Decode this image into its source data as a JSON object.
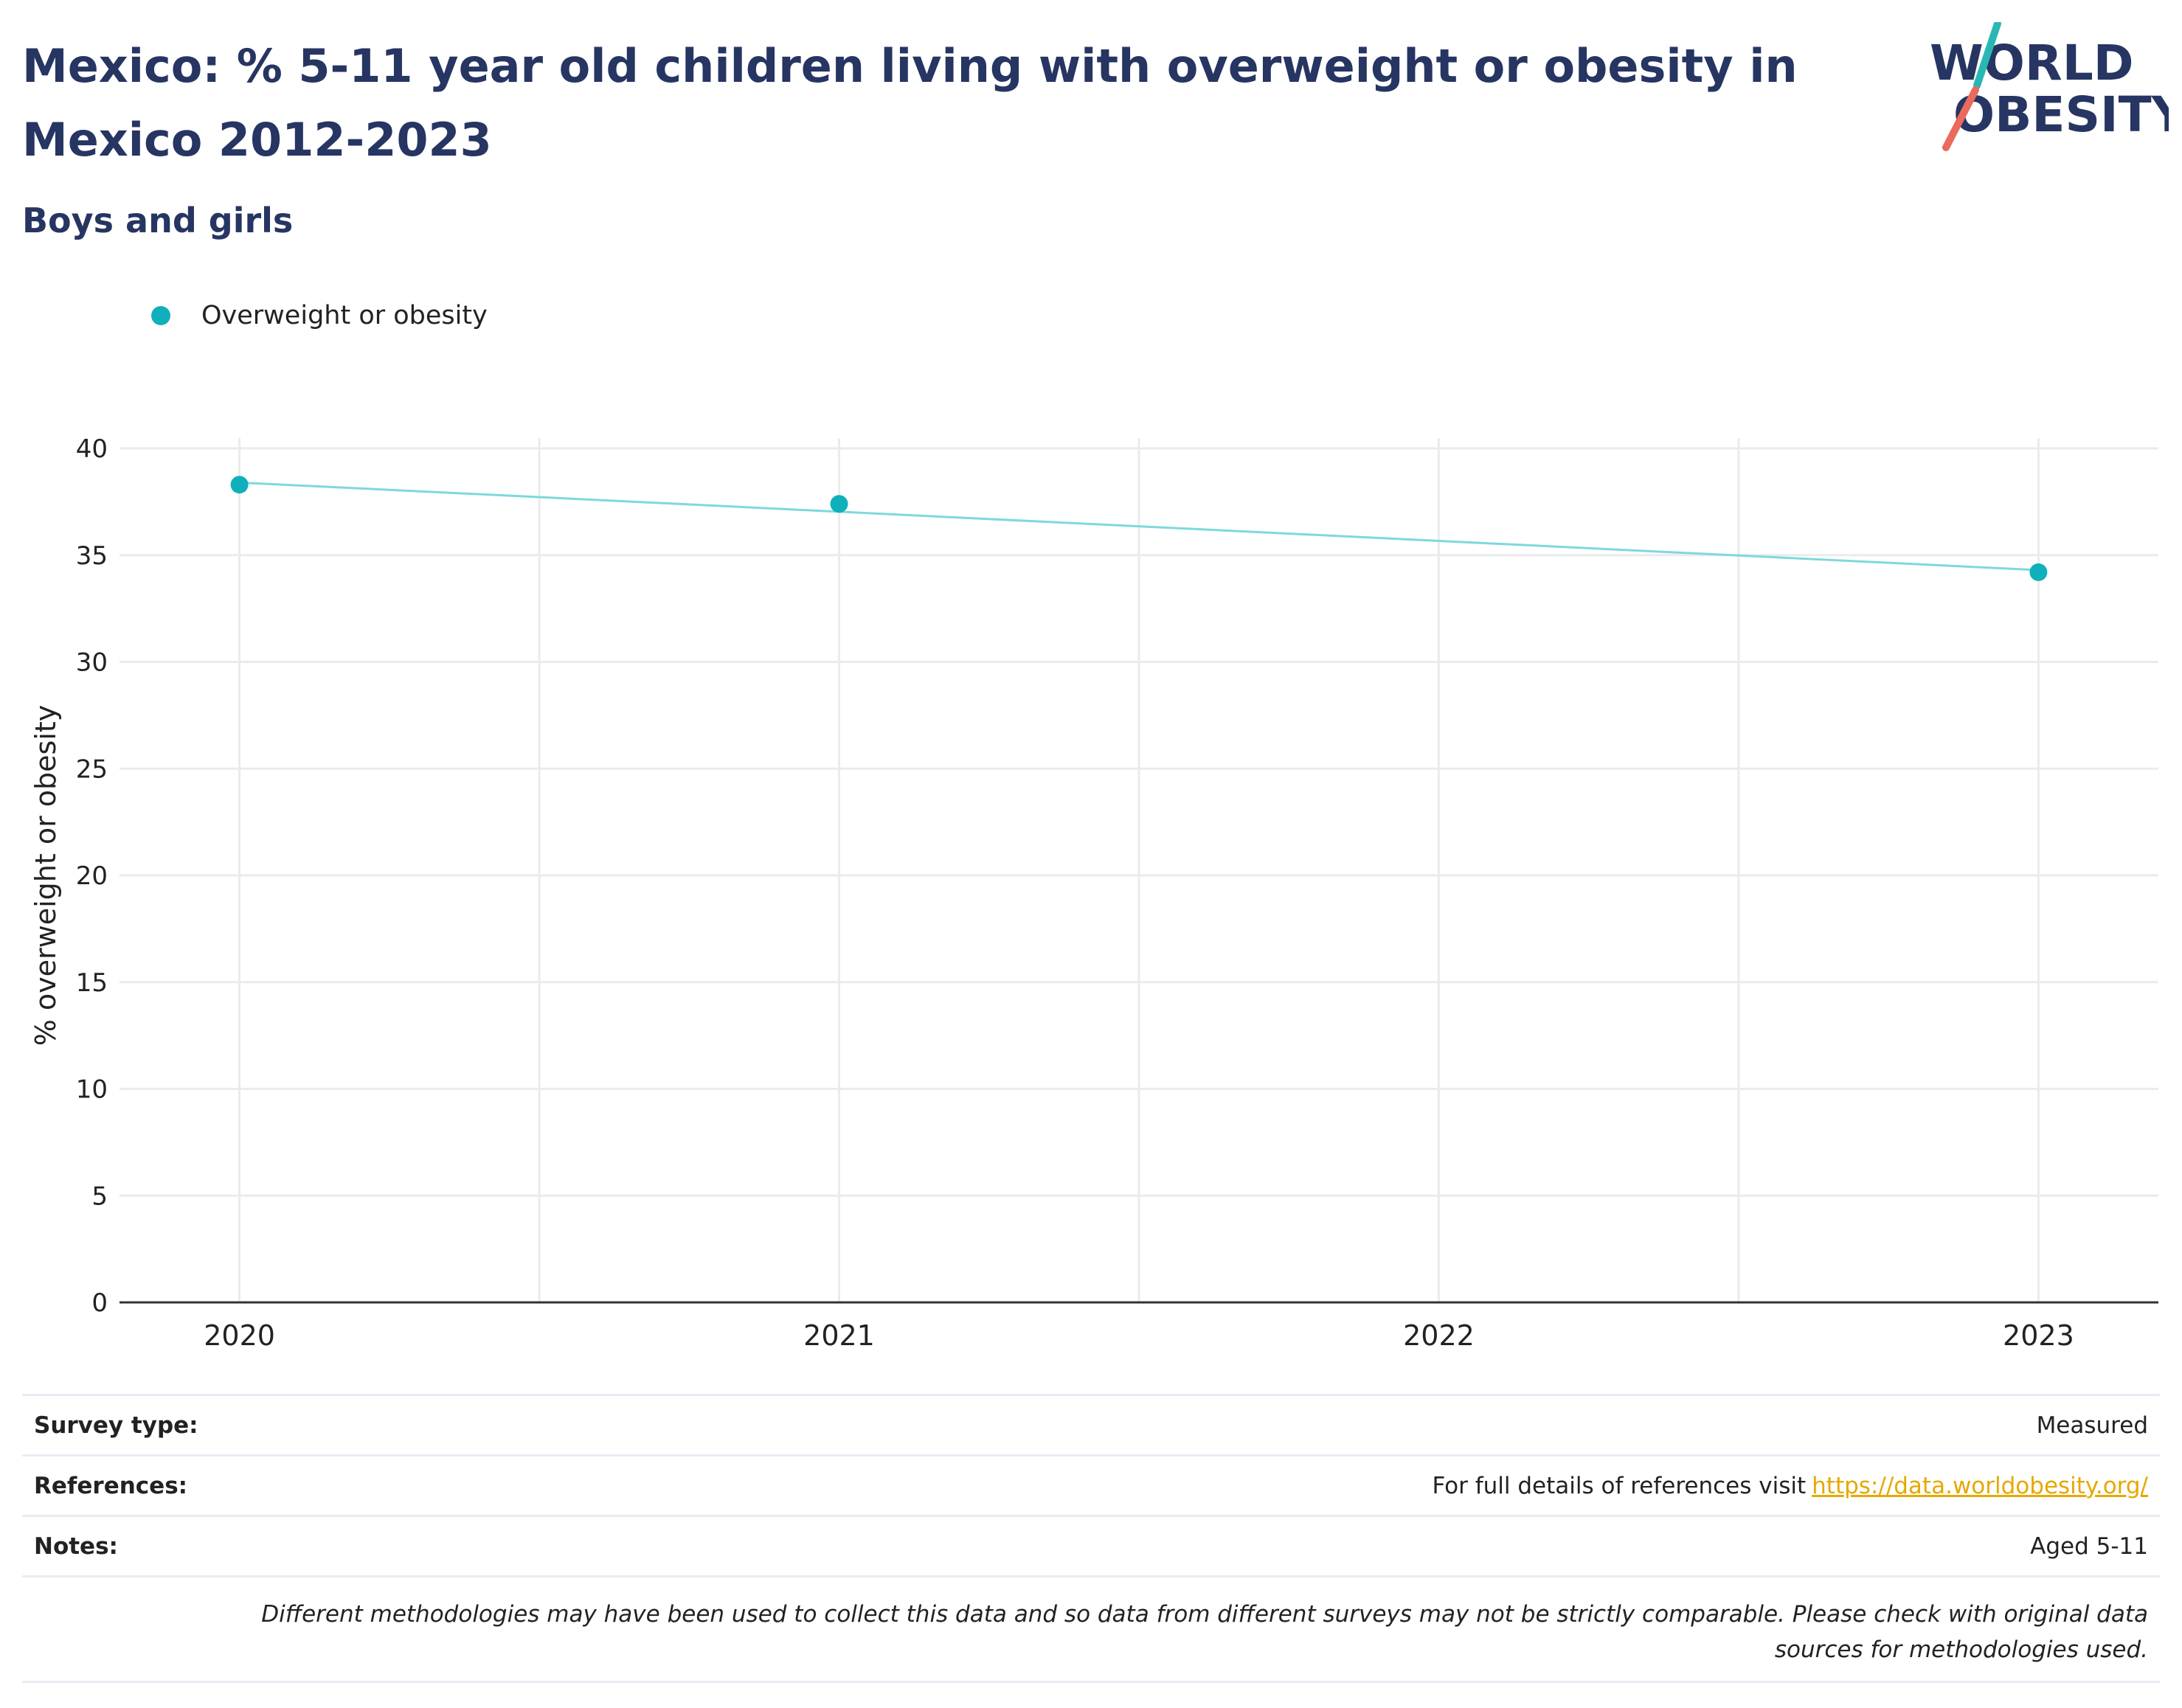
{
  "header": {
    "title": "Mexico: % 5-11 year old children living with overweight or obesity in Mexico 2012-2023",
    "subtitle": "Boys and girls",
    "logo_line1": "WORLD",
    "logo_line2": "OBESITY"
  },
  "legend": {
    "items": [
      {
        "label": "Overweight or obesity"
      }
    ]
  },
  "colors": {
    "accent": "#0fb0bb",
    "line": "#7fd8dc",
    "title": "#263562",
    "logo_teal": "#2ab7b4",
    "logo_coral": "#ea6a5b",
    "link": "#e6a800"
  },
  "chart_data": {
    "type": "line",
    "x": [
      2020,
      2021,
      2023
    ],
    "series": [
      {
        "name": "Overweight or obesity",
        "values": [
          38.3,
          37.4,
          34.2
        ]
      }
    ],
    "trend_line": {
      "x": [
        2020,
        2023
      ],
      "values": [
        38.4,
        34.3
      ]
    },
    "xlim": [
      2019.8,
      2023.2
    ],
    "xticks": [
      "2020",
      "2021",
      "2022",
      "2023"
    ],
    "ylim": [
      0,
      40
    ],
    "yticks": [
      "0",
      "5",
      "10",
      "15",
      "20",
      "25",
      "30",
      "35",
      "40"
    ],
    "ylabel": "% overweight or obesity",
    "xlabel": "",
    "grid": true,
    "legend_position": "top-left"
  },
  "info": {
    "survey_type_label": "Survey type:",
    "survey_type_value": "Measured",
    "references_label": "References:",
    "references_prefix": "For full details of references visit",
    "references_link": "https://data.worldobesity.org/",
    "notes_label": "Notes:",
    "notes_value": "Aged 5-11",
    "disclaimer": "Different methodologies may have been used to collect this data and so data from different surveys may not be strictly comparable. Please check with original data sources for methodologies used."
  }
}
